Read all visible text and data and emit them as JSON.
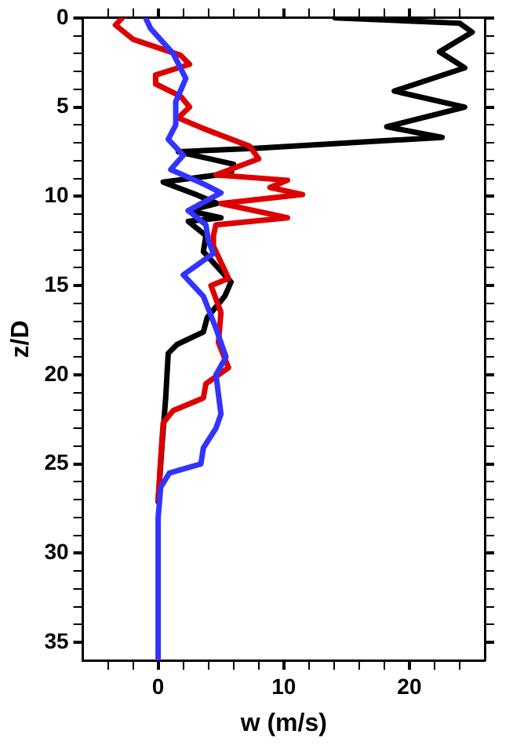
{
  "chart_data": {
    "type": "line",
    "xlabel": "w (m/s)",
    "ylabel": "z/D",
    "xlim": [
      -6,
      26
    ],
    "ylim": [
      36,
      0
    ],
    "xticks": [
      {
        "value": -4,
        "label": null
      },
      {
        "value": -2,
        "label": null
      },
      0,
      {
        "value": 2,
        "label": null
      },
      {
        "value": 4,
        "label": null
      },
      {
        "value": 6,
        "label": null
      },
      {
        "value": 8,
        "label": null
      },
      10,
      {
        "value": 12,
        "label": null
      },
      {
        "value": 14,
        "label": null
      },
      {
        "value": 16,
        "label": null
      },
      {
        "value": 18,
        "label": null
      },
      20,
      {
        "value": 22,
        "label": null
      },
      {
        "value": 24,
        "label": null
      }
    ],
    "yticks": [
      0,
      {
        "value": 1,
        "label": null
      },
      {
        "value": 2,
        "label": null
      },
      {
        "value": 3,
        "label": null
      },
      {
        "value": 4,
        "label": null
      },
      5,
      {
        "value": 6,
        "label": null
      },
      {
        "value": 7,
        "label": null
      },
      {
        "value": 8,
        "label": null
      },
      {
        "value": 9,
        "label": null
      },
      10,
      {
        "value": 11,
        "label": null
      },
      {
        "value": 12,
        "label": null
      },
      {
        "value": 13,
        "label": null
      },
      {
        "value": 14,
        "label": null
      },
      15,
      {
        "value": 16,
        "label": null
      },
      {
        "value": 17,
        "label": null
      },
      {
        "value": 18,
        "label": null
      },
      {
        "value": 19,
        "label": null
      },
      20,
      {
        "value": 21,
        "label": null
      },
      {
        "value": 22,
        "label": null
      },
      {
        "value": 23,
        "label": null
      },
      {
        "value": 24,
        "label": null
      },
      25,
      {
        "value": 26,
        "label": null
      },
      {
        "value": 27,
        "label": null
      },
      {
        "value": 28,
        "label": null
      },
      {
        "value": 29,
        "label": null
      },
      30,
      {
        "value": 31,
        "label": null
      },
      {
        "value": 32,
        "label": null
      },
      {
        "value": 33,
        "label": null
      },
      {
        "value": 34,
        "label": null
      },
      35
    ],
    "grid": false,
    "legend": false,
    "marker": "none",
    "line_style": "solid",
    "series": [
      {
        "color": "#000000",
        "x": [
          14.1,
          24,
          25,
          22.4,
          24.4,
          18.8,
          24.4,
          18.2,
          22.6,
          7.9,
          1.6,
          6,
          5.8,
          0.4,
          3,
          4.7,
          2.4,
          5,
          2.4,
          3.8,
          3.6,
          5.8,
          5.3,
          3.9,
          3.6,
          1.5,
          0.8,
          0.6,
          0.3,
          0
        ],
        "values": [
          0,
          0.3,
          0.8,
          1.9,
          2.8,
          4.1,
          5,
          6.1,
          6.7,
          7.3,
          7.5,
          8.2,
          8.7,
          9.2,
          9.9,
          10.4,
          10.8,
          11.2,
          11.4,
          12.2,
          13.1,
          14.8,
          15.6,
          16.8,
          17.6,
          18.3,
          18.8,
          21.3,
          24,
          27.1
        ]
      },
      {
        "color": "#dd0000",
        "x": [
          -2.85,
          -3.4,
          -2,
          1.8,
          2.5,
          -0.2,
          -0.2,
          1.8,
          2.5,
          1.6,
          3.6,
          7.3,
          8,
          4.6,
          10.3,
          8.9,
          11.5,
          5,
          10.3,
          4.6,
          4.4,
          4.4,
          5.6,
          4.2,
          5,
          4.8,
          5.6,
          3.8,
          3.6,
          1.2,
          0.4,
          0.2,
          0
        ],
        "values": [
          0,
          0.4,
          1.2,
          2.1,
          2.6,
          3.2,
          3.7,
          4.4,
          5,
          5.6,
          6.2,
          7.2,
          7.9,
          8.8,
          9.1,
          9.5,
          9.9,
          10.4,
          11.2,
          11.6,
          12.2,
          12.8,
          14.6,
          15,
          16.5,
          18.2,
          19.6,
          20.5,
          21.3,
          22,
          22.7,
          24.7,
          27
        ]
      },
      {
        "color": "#3333ff",
        "x": [
          -1,
          -0.6,
          1.2,
          2.2,
          1.4,
          1.4,
          0.8,
          2,
          1,
          3.6,
          5,
          2.4,
          3.8,
          4,
          4.4,
          2,
          3.6,
          4.6,
          5.4,
          4.6,
          5,
          4.6,
          3.6,
          3.4,
          0.9,
          0.2,
          0,
          0
        ],
        "values": [
          0,
          0.6,
          2,
          3.4,
          4.7,
          6,
          6.8,
          7.7,
          8.5,
          9.3,
          9.8,
          10.8,
          11.6,
          12.5,
          13.2,
          14.4,
          15.6,
          17.4,
          19,
          20,
          22.2,
          23,
          24.1,
          25,
          25.5,
          26.3,
          28,
          36
        ]
      }
    ]
  }
}
